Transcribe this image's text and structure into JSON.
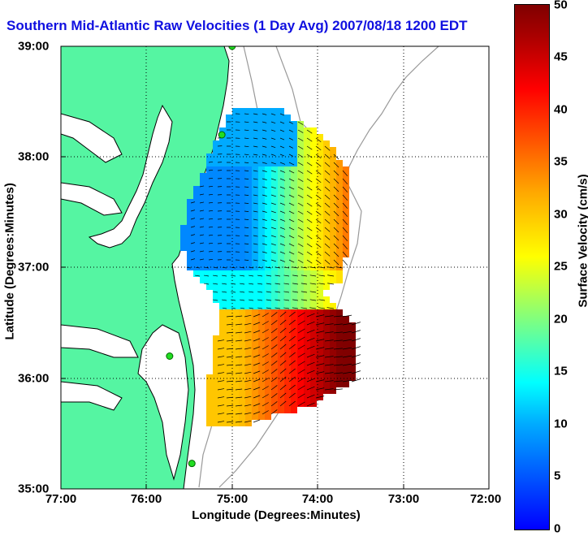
{
  "title": "Southern Mid-Atlantic Raw Velocities (1 Day Avg) 2007/08/18 1200 EDT",
  "axes": {
    "xlabel": "Longitude (Degrees:Minutes)",
    "ylabel": "Latitude (Degrees:Minutes)",
    "x_ticks": [
      "77:00",
      "76:00",
      "75:00",
      "74:00",
      "73:00",
      "72:00"
    ],
    "y_ticks": [
      "39:00",
      "38:00",
      "37:00",
      "36:00",
      "35:00"
    ]
  },
  "colorbar": {
    "label": "Surface Velocity (cm/s)",
    "ticks": [
      "50",
      "45",
      "40",
      "35",
      "30",
      "25",
      "20",
      "15",
      "10",
      "5",
      "0"
    ],
    "range": [
      0,
      50
    ]
  },
  "colors": {
    "land": "#55f5a2",
    "water": "#ffffff",
    "title": "#1010e0",
    "station": "#22dd22"
  },
  "stations": [
    {
      "lon": -75.0,
      "lat": 39.0
    },
    {
      "lon": -75.12,
      "lat": 38.2
    },
    {
      "lon": -75.73,
      "lat": 36.2
    },
    {
      "lon": -75.47,
      "lat": 35.23
    }
  ]
}
